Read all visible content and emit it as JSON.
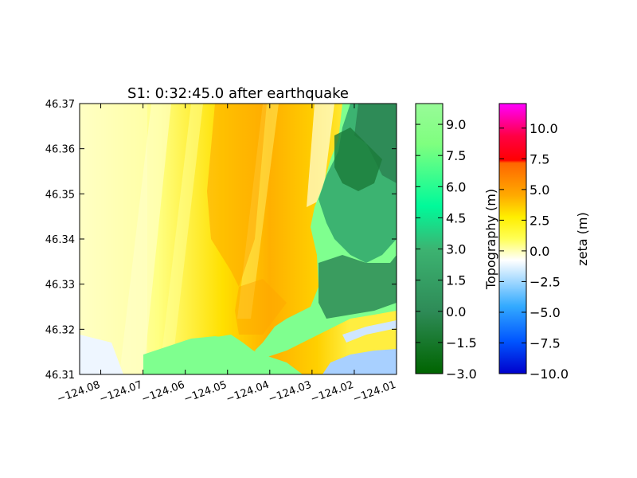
{
  "chart_data": {
    "type": "heatmap",
    "title": "S1: 0:32:45.0 after earthquake",
    "xlabel": "",
    "ylabel": "",
    "xlim": [
      -124.085,
      -124.01
    ],
    "ylim": [
      46.31,
      46.37
    ],
    "x_ticks": [
      -124.08,
      -124.07,
      -124.06,
      -124.05,
      -124.04,
      -124.03,
      -124.02,
      -124.01
    ],
    "x_tick_labels": [
      "−124.08",
      "−124.07",
      "−124.06",
      "−124.05",
      "−124.04",
      "−124.03",
      "−124.02",
      "−124.01"
    ],
    "y_ticks": [
      46.31,
      46.32,
      46.33,
      46.34,
      46.35,
      46.36,
      46.37
    ],
    "y_tick_labels": [
      "46.31",
      "46.32",
      "46.33",
      "46.34",
      "46.35",
      "46.36",
      "46.37"
    ],
    "grid": false,
    "colorbars": [
      {
        "label": "Topography (m)",
        "range": [
          -3.0,
          10.0
        ],
        "ticks": [
          -3.0,
          -1.5,
          0.0,
          1.5,
          3.0,
          4.5,
          6.0,
          7.5,
          9.0
        ],
        "tick_labels": [
          "−3.0",
          "−1.5",
          "0.0",
          "1.5",
          "3.0",
          "4.5",
          "6.0",
          "7.5",
          "9.0"
        ],
        "colors": [
          "#006400",
          "#2e8b57",
          "#3cb371",
          "#00fa9a",
          "#7fff7f",
          "#98fb98"
        ]
      },
      {
        "label": "zeta (m)",
        "range": [
          -10.0,
          12.0
        ],
        "ticks": [
          -10.0,
          -7.5,
          -5.0,
          -2.5,
          0.0,
          2.5,
          5.0,
          7.5,
          10.0
        ],
        "tick_labels": [
          "−10.0",
          "−7.5",
          "−5.0",
          "−2.5",
          "0.0",
          "2.5",
          "5.0",
          "7.5",
          "10.0"
        ],
        "colors": [
          "#0000cc",
          "#0055ff",
          "#33aaff",
          "#ffffff",
          "#ffff33",
          "#ffcc00",
          "#ff6600",
          "#ff0000",
          "#ff00ff"
        ]
      }
    ]
  }
}
